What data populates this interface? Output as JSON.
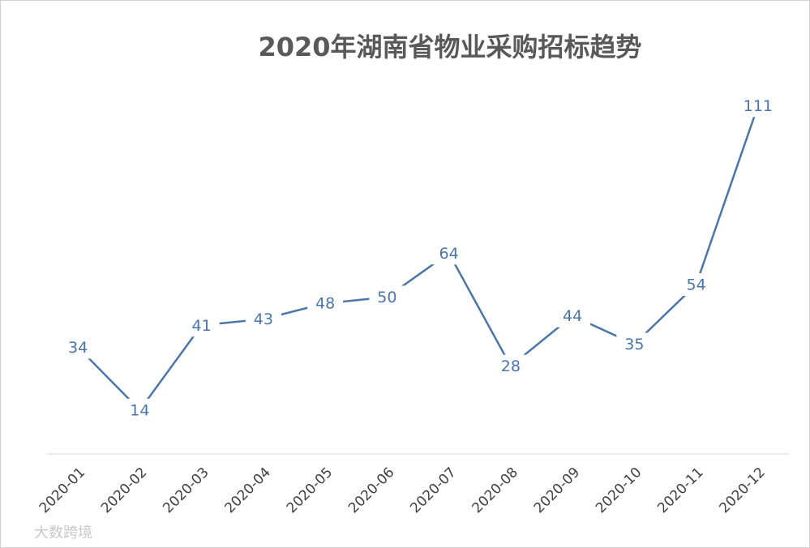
{
  "chart_data": {
    "type": "line",
    "title": "2020年湖南省物业采购招标趋势",
    "categories": [
      "2020-01",
      "2020-02",
      "2020-03",
      "2020-04",
      "2020-05",
      "2020-06",
      "2020-07",
      "2020-08",
      "2020-09",
      "2020-10",
      "2020-11",
      "2020-12"
    ],
    "series": [
      {
        "name": "物业采购招标",
        "color": "#4a75aa",
        "values": [
          34,
          14,
          41,
          43,
          48,
          50,
          64,
          28,
          44,
          35,
          54,
          111
        ]
      }
    ],
    "ylim": [
      0,
      116
    ],
    "watermark": "大数跨境"
  }
}
